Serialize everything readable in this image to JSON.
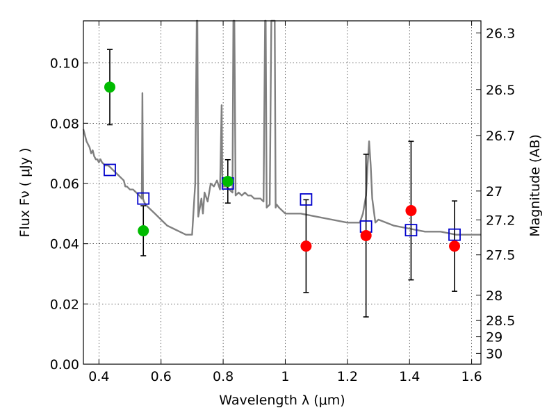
{
  "chart_data": {
    "type": "scatter",
    "title": "",
    "xlabel": "Wavelength  λ (μm)",
    "ylabel": "Flux  Fν  ( μJy )",
    "y2label": "Magnitude (AB)",
    "xlim": [
      0.35,
      1.63
    ],
    "ylim": [
      0.0,
      0.114
    ],
    "grid": true,
    "x_ticks": [
      0.4,
      0.6,
      0.8,
      1.0,
      1.2,
      1.4,
      1.6
    ],
    "x_tick_labels": [
      "0.4",
      "0.6",
      "0.8",
      "1",
      "1.2",
      "1.4",
      "1.6"
    ],
    "y_ticks": [
      0.0,
      0.02,
      0.04,
      0.06,
      0.08,
      0.1
    ],
    "y_tick_labels": [
      "0.00",
      "0.02",
      "0.04",
      "0.06",
      "0.08",
      "0.10"
    ],
    "mag_ticks": [
      {
        "label": "26.3",
        "flux": 0.11
      },
      {
        "label": "26.5",
        "flux": 0.0912
      },
      {
        "label": "26.7",
        "flux": 0.0759
      },
      {
        "label": "27",
        "flux": 0.0575
      },
      {
        "label": "27.2",
        "flux": 0.0479
      },
      {
        "label": "27.5",
        "flux": 0.0363
      },
      {
        "label": "28",
        "flux": 0.0229
      },
      {
        "label": "28.5",
        "flux": 0.0145
      },
      {
        "label": "29",
        "flux": 0.0091
      },
      {
        "label": "30",
        "flux": 0.0036
      }
    ],
    "series": [
      {
        "name": "model_spectrum",
        "kind": "line",
        "color": "#808080",
        "x": [
          0.35,
          0.36,
          0.365,
          0.37,
          0.375,
          0.38,
          0.385,
          0.39,
          0.395,
          0.4,
          0.405,
          0.41,
          0.42,
          0.43,
          0.44,
          0.45,
          0.46,
          0.47,
          0.48,
          0.485,
          0.49,
          0.5,
          0.51,
          0.52,
          0.53,
          0.538,
          0.54,
          0.542,
          0.545,
          0.55,
          0.56,
          0.58,
          0.6,
          0.62,
          0.64,
          0.66,
          0.68,
          0.7,
          0.71,
          0.715,
          0.717,
          0.72,
          0.725,
          0.73,
          0.735,
          0.74,
          0.75,
          0.76,
          0.77,
          0.78,
          0.79,
          0.795,
          0.797,
          0.8,
          0.81,
          0.82,
          0.83,
          0.833,
          0.836,
          0.84,
          0.85,
          0.86,
          0.87,
          0.88,
          0.89,
          0.9,
          0.91,
          0.92,
          0.93,
          0.935,
          0.937,
          0.94,
          0.95,
          0.955,
          0.957,
          0.96,
          0.963,
          0.966,
          0.969,
          0.972,
          0.98,
          1.0,
          1.05,
          1.1,
          1.15,
          1.2,
          1.24,
          1.25,
          1.26,
          1.265,
          1.27,
          1.275,
          1.28,
          1.29,
          1.3,
          1.35,
          1.4,
          1.45,
          1.5,
          1.55,
          1.6,
          1.63
        ],
        "y": [
          0.078,
          0.074,
          0.073,
          0.072,
          0.07,
          0.071,
          0.069,
          0.068,
          0.068,
          0.067,
          0.068,
          0.067,
          0.066,
          0.066,
          0.065,
          0.064,
          0.063,
          0.062,
          0.061,
          0.059,
          0.059,
          0.058,
          0.058,
          0.057,
          0.056,
          0.055,
          0.09,
          0.055,
          0.054,
          0.053,
          0.052,
          0.05,
          0.048,
          0.046,
          0.045,
          0.044,
          0.043,
          0.043,
          0.06,
          0.114,
          0.114,
          0.049,
          0.052,
          0.055,
          0.05,
          0.057,
          0.054,
          0.06,
          0.059,
          0.061,
          0.058,
          0.086,
          0.063,
          0.059,
          0.059,
          0.058,
          0.057,
          0.114,
          0.114,
          0.056,
          0.057,
          0.056,
          0.057,
          0.056,
          0.056,
          0.055,
          0.055,
          0.055,
          0.054,
          0.114,
          0.114,
          0.052,
          0.053,
          0.114,
          0.114,
          0.114,
          0.114,
          0.114,
          0.052,
          0.053,
          0.052,
          0.05,
          0.05,
          0.049,
          0.048,
          0.047,
          0.047,
          0.05,
          0.056,
          0.066,
          0.074,
          0.066,
          0.055,
          0.047,
          0.048,
          0.046,
          0.045,
          0.044,
          0.044,
          0.043,
          0.043,
          0.043
        ]
      },
      {
        "name": "model_photometry",
        "kind": "open_square",
        "color": "#0000cc",
        "x": [
          0.435,
          0.543,
          0.815,
          1.067,
          1.26,
          1.405,
          1.545
        ],
        "y": [
          0.0645,
          0.055,
          0.06,
          0.0547,
          0.0457,
          0.0445,
          0.043
        ]
      },
      {
        "name": "detections",
        "kind": "filled_circle",
        "color": "#00bb00",
        "x": [
          0.435,
          0.543,
          0.815
        ],
        "y": [
          0.092,
          0.0443,
          0.0607
        ],
        "err_low": [
          0.0125,
          0.0083,
          0.0072
        ],
        "err_high": [
          0.0125,
          0.0083,
          0.0072
        ]
      },
      {
        "name": "upper_limits",
        "kind": "filled_circle",
        "color": "#ff0000",
        "x": [
          1.067,
          1.26,
          1.405,
          1.545
        ],
        "y": [
          0.0392,
          0.0427,
          0.051,
          0.0392
        ],
        "err_low": [
          0.0154,
          0.027,
          0.023,
          0.015
        ],
        "err_high": [
          0.0154,
          0.027,
          0.023,
          0.015
        ]
      }
    ]
  }
}
